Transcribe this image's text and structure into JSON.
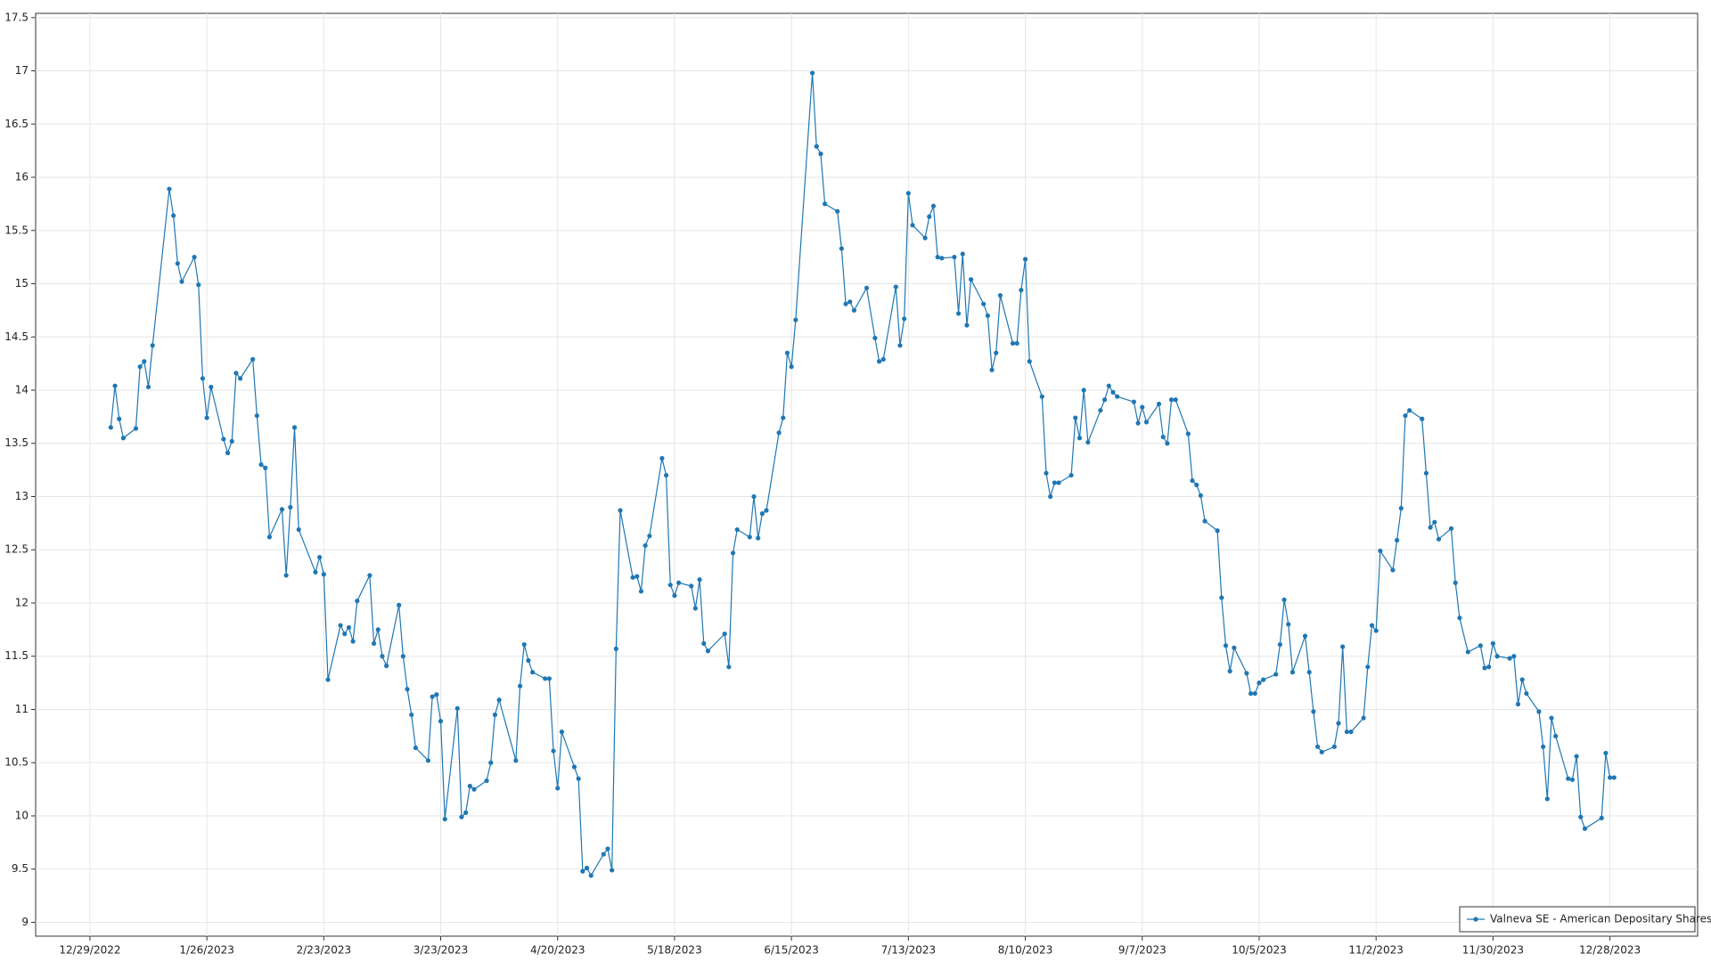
{
  "chart_data": {
    "type": "line",
    "grid": true,
    "legend": "lower right",
    "ylim": [
      8.87,
      17.54
    ],
    "yticks": [
      9,
      9.5,
      10,
      10.5,
      11,
      11.5,
      12,
      12.5,
      13,
      13.5,
      14,
      14.5,
      15,
      15.5,
      16,
      16.5,
      17,
      17.5
    ],
    "xlim": [
      "12/16/2022",
      "1/18/2024"
    ],
    "xticks": [
      "12/29/2022",
      "1/26/2023",
      "2/23/2023",
      "3/23/2023",
      "4/20/2023",
      "5/18/2023",
      "6/15/2023",
      "7/13/2023",
      "8/10/2023",
      "9/7/2023",
      "10/5/2023",
      "11/2/2023",
      "11/30/2023",
      "12/28/2023"
    ],
    "x": [
      "1/3/2023",
      "1/4/2023",
      "1/5/2023",
      "1/6/2023",
      "1/9/2023",
      "1/10/2023",
      "1/11/2023",
      "1/12/2023",
      "1/13/2023",
      "1/17/2023",
      "1/18/2023",
      "1/19/2023",
      "1/20/2023",
      "1/23/2023",
      "1/24/2023",
      "1/25/2023",
      "1/26/2023",
      "1/27/2023",
      "1/30/2023",
      "1/31/2023",
      "2/1/2023",
      "2/2/2023",
      "2/3/2023",
      "2/6/2023",
      "2/7/2023",
      "2/8/2023",
      "2/9/2023",
      "2/10/2023",
      "2/13/2023",
      "2/14/2023",
      "2/15/2023",
      "2/16/2023",
      "2/17/2023",
      "2/21/2023",
      "2/22/2023",
      "2/23/2023",
      "2/24/2023",
      "2/27/2023",
      "2/28/2023",
      "3/1/2023",
      "3/2/2023",
      "3/3/2023",
      "3/6/2023",
      "3/7/2023",
      "3/8/2023",
      "3/9/2023",
      "3/10/2023",
      "3/13/2023",
      "3/14/2023",
      "3/15/2023",
      "3/16/2023",
      "3/17/2023",
      "3/20/2023",
      "3/21/2023",
      "3/22/2023",
      "3/23/2023",
      "3/24/2023",
      "3/27/2023",
      "3/28/2023",
      "3/29/2023",
      "3/30/2023",
      "3/31/2023",
      "4/3/2023",
      "4/4/2023",
      "4/5/2023",
      "4/6/2023",
      "4/10/2023",
      "4/11/2023",
      "4/12/2023",
      "4/13/2023",
      "4/14/2023",
      "4/17/2023",
      "4/18/2023",
      "4/19/2023",
      "4/20/2023",
      "4/21/2023",
      "4/24/2023",
      "4/25/2023",
      "4/26/2023",
      "4/27/2023",
      "4/28/2023",
      "5/1/2023",
      "5/2/2023",
      "5/3/2023",
      "5/4/2023",
      "5/5/2023",
      "5/8/2023",
      "5/9/2023",
      "5/10/2023",
      "5/11/2023",
      "5/12/2023",
      "5/15/2023",
      "5/16/2023",
      "5/17/2023",
      "5/18/2023",
      "5/19/2023",
      "5/22/2023",
      "5/23/2023",
      "5/24/2023",
      "5/25/2023",
      "5/26/2023",
      "5/30/2023",
      "5/31/2023",
      "6/1/2023",
      "6/2/2023",
      "6/5/2023",
      "6/6/2023",
      "6/7/2023",
      "6/8/2023",
      "6/9/2023",
      "6/12/2023",
      "6/13/2023",
      "6/14/2023",
      "6/15/2023",
      "6/16/2023",
      "6/20/2023",
      "6/21/2023",
      "6/22/2023",
      "6/23/2023",
      "6/26/2023",
      "6/27/2023",
      "6/28/2023",
      "6/29/2023",
      "6/30/2023",
      "7/3/2023",
      "7/5/2023",
      "7/6/2023",
      "7/7/2023",
      "7/10/2023",
      "7/11/2023",
      "7/12/2023",
      "7/13/2023",
      "7/14/2023",
      "7/17/2023",
      "7/18/2023",
      "7/19/2023",
      "7/20/2023",
      "7/21/2023",
      "7/24/2023",
      "7/25/2023",
      "7/26/2023",
      "7/27/2023",
      "7/28/2023",
      "7/31/2023",
      "8/1/2023",
      "8/2/2023",
      "8/3/2023",
      "8/4/2023",
      "8/7/2023",
      "8/8/2023",
      "8/9/2023",
      "8/10/2023",
      "8/11/2023",
      "8/14/2023",
      "8/15/2023",
      "8/16/2023",
      "8/17/2023",
      "8/18/2023",
      "8/21/2023",
      "8/22/2023",
      "8/23/2023",
      "8/24/2023",
      "8/25/2023",
      "8/28/2023",
      "8/29/2023",
      "8/30/2023",
      "8/31/2023",
      "9/1/2023",
      "9/5/2023",
      "9/6/2023",
      "9/7/2023",
      "9/8/2023",
      "9/11/2023",
      "9/12/2023",
      "9/13/2023",
      "9/14/2023",
      "9/15/2023",
      "9/18/2023",
      "9/19/2023",
      "9/20/2023",
      "9/21/2023",
      "9/22/2023",
      "9/25/2023",
      "9/26/2023",
      "9/27/2023",
      "9/28/2023",
      "9/29/2023",
      "10/2/2023",
      "10/3/2023",
      "10/4/2023",
      "10/5/2023",
      "10/6/2023",
      "10/9/2023",
      "10/10/2023",
      "10/11/2023",
      "10/12/2023",
      "10/13/2023",
      "10/16/2023",
      "10/17/2023",
      "10/18/2023",
      "10/19/2023",
      "10/20/2023",
      "10/23/2023",
      "10/24/2023",
      "10/25/2023",
      "10/26/2023",
      "10/27/2023",
      "10/30/2023",
      "10/31/2023",
      "11/1/2023",
      "11/2/2023",
      "11/3/2023",
      "11/6/2023",
      "11/7/2023",
      "11/8/2023",
      "11/9/2023",
      "11/10/2023",
      "11/13/2023",
      "11/14/2023",
      "11/15/2023",
      "11/16/2023",
      "11/17/2023",
      "11/20/2023",
      "11/21/2023",
      "11/22/2023",
      "11/24/2023",
      "11/27/2023",
      "11/28/2023",
      "11/29/2023",
      "11/30/2023",
      "12/1/2023",
      "12/4/2023",
      "12/5/2023",
      "12/6/2023",
      "12/7/2023",
      "12/8/2023",
      "12/11/2023",
      "12/12/2023",
      "12/13/2023",
      "12/14/2023",
      "12/15/2023",
      "12/18/2023",
      "12/19/2023",
      "12/20/2023",
      "12/21/2023",
      "12/22/2023",
      "12/26/2023",
      "12/27/2023",
      "12/28/2023",
      "12/29/2023"
    ],
    "series": [
      {
        "name": "Valneva SE - American Depositary Shares",
        "color": "#1f77b4",
        "values": [
          13.65,
          14.04,
          13.73,
          13.55,
          13.64,
          14.22,
          14.27,
          14.03,
          14.42,
          15.89,
          15.64,
          15.19,
          15.02,
          15.25,
          14.99,
          14.11,
          13.74,
          14.03,
          13.54,
          13.41,
          13.52,
          14.16,
          14.11,
          14.29,
          13.76,
          13.3,
          13.27,
          12.62,
          12.88,
          12.26,
          12.9,
          13.65,
          12.69,
          12.29,
          12.43,
          12.27,
          11.28,
          11.79,
          11.71,
          11.77,
          11.64,
          12.02,
          12.26,
          11.62,
          11.75,
          11.5,
          11.41,
          11.98,
          11.5,
          11.19,
          10.95,
          10.64,
          10.52,
          11.12,
          11.14,
          10.89,
          9.97,
          11.01,
          9.99,
          10.03,
          10.28,
          10.25,
          10.33,
          10.5,
          10.95,
          11.09,
          10.52,
          11.22,
          11.61,
          11.46,
          11.35,
          11.29,
          11.29,
          10.61,
          10.26,
          10.79,
          10.46,
          10.35,
          9.48,
          9.51,
          9.44,
          9.64,
          9.69,
          9.49,
          11.57,
          12.87,
          12.24,
          12.25,
          12.11,
          12.54,
          12.63,
          13.36,
          13.2,
          12.17,
          12.07,
          12.19,
          12.16,
          11.95,
          12.22,
          11.62,
          11.55,
          11.71,
          11.4,
          12.47,
          12.69,
          12.62,
          13.0,
          12.61,
          12.84,
          12.87,
          13.6,
          13.74,
          14.35,
          14.22,
          14.66,
          16.98,
          16.29,
          16.22,
          15.75,
          15.68,
          15.33,
          14.81,
          14.83,
          14.75,
          14.96,
          14.49,
          14.27,
          14.29,
          14.97,
          14.42,
          14.67,
          15.85,
          15.55,
          15.43,
          15.63,
          15.73,
          15.25,
          15.24,
          15.25,
          14.72,
          15.28,
          14.61,
          15.04,
          14.81,
          14.7,
          14.19,
          14.35,
          14.89,
          14.44,
          14.44,
          14.94,
          15.23,
          14.27,
          13.94,
          13.22,
          13.0,
          13.13,
          13.13,
          13.2,
          13.74,
          13.55,
          14.0,
          13.51,
          13.81,
          13.91,
          14.04,
          13.98,
          13.94,
          13.89,
          13.69,
          13.84,
          13.7,
          13.87,
          13.56,
          13.5,
          13.91,
          13.91,
          13.59,
          13.15,
          13.11,
          13.01,
          12.77,
          12.68,
          12.05,
          11.6,
          11.36,
          11.58,
          11.34,
          11.15,
          11.15,
          11.25,
          11.28,
          11.33,
          11.61,
          12.03,
          11.8,
          11.35,
          11.69,
          11.35,
          10.98,
          10.65,
          10.6,
          10.65,
          10.87,
          11.59,
          10.79,
          10.79,
          10.92,
          11.4,
          11.79,
          11.74,
          12.49,
          12.31,
          12.59,
          12.89,
          13.76,
          13.81,
          13.73,
          13.22,
          12.71,
          12.76,
          12.6,
          12.7,
          12.19,
          11.86,
          11.54,
          11.6,
          11.39,
          11.4,
          11.62,
          11.5,
          11.48,
          11.5,
          11.05,
          11.28,
          11.15,
          10.98,
          10.65,
          10.16,
          10.92,
          10.75,
          10.35,
          10.34,
          10.56,
          9.99,
          9.88,
          9.98,
          10.59,
          10.36,
          10.36
        ]
      }
    ]
  }
}
